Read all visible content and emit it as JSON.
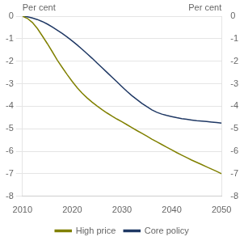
{
  "chart_data": {
    "type": "line",
    "ylabel": "Per cent",
    "y2label": "Per cent",
    "x": [
      2010,
      2011,
      2012,
      2013,
      2014,
      2015,
      2016,
      2017,
      2018,
      2019,
      2020,
      2021,
      2022,
      2023,
      2024,
      2025,
      2026,
      2027,
      2028,
      2029,
      2030,
      2031,
      2032,
      2033,
      2034,
      2035,
      2036,
      2037,
      2038,
      2039,
      2040,
      2041,
      2042,
      2043,
      2044,
      2045,
      2046,
      2047,
      2048,
      2049,
      2050
    ],
    "series": [
      {
        "name": "High price",
        "color": "#808000",
        "values": [
          0.0,
          -0.1,
          -0.28,
          -0.55,
          -0.88,
          -1.22,
          -1.58,
          -1.95,
          -2.28,
          -2.6,
          -2.9,
          -3.18,
          -3.42,
          -3.63,
          -3.82,
          -3.99,
          -4.15,
          -4.3,
          -4.44,
          -4.57,
          -4.69,
          -4.82,
          -4.95,
          -5.08,
          -5.2,
          -5.33,
          -5.46,
          -5.58,
          -5.7,
          -5.82,
          -5.94,
          -6.06,
          -6.17,
          -6.28,
          -6.39,
          -6.49,
          -6.59,
          -6.69,
          -6.79,
          -6.89,
          -7.0
        ]
      },
      {
        "name": "Core policy",
        "color": "#1F3864",
        "values": [
          0.0,
          -0.03,
          -0.08,
          -0.15,
          -0.24,
          -0.35,
          -0.48,
          -0.62,
          -0.77,
          -0.93,
          -1.1,
          -1.28,
          -1.47,
          -1.67,
          -1.87,
          -2.08,
          -2.29,
          -2.5,
          -2.71,
          -2.92,
          -3.13,
          -3.34,
          -3.53,
          -3.7,
          -3.87,
          -4.02,
          -4.16,
          -4.27,
          -4.35,
          -4.41,
          -4.46,
          -4.51,
          -4.55,
          -4.58,
          -4.61,
          -4.64,
          -4.66,
          -4.68,
          -4.7,
          -4.72,
          -4.75
        ]
      }
    ],
    "xlim": [
      2010,
      2050
    ],
    "xticks": [
      2010,
      2020,
      2030,
      2040,
      2050
    ],
    "ylim": [
      -8,
      0
    ],
    "yticks": [
      0,
      -1,
      -2,
      -3,
      -4,
      -5,
      -6,
      -7,
      -8
    ],
    "y2lim": [
      -8,
      0
    ],
    "y2ticks": [
      0,
      -1,
      -2,
      -3,
      -4,
      -5,
      -6,
      -7,
      -8
    ],
    "grid": true,
    "legend": "bottom"
  }
}
